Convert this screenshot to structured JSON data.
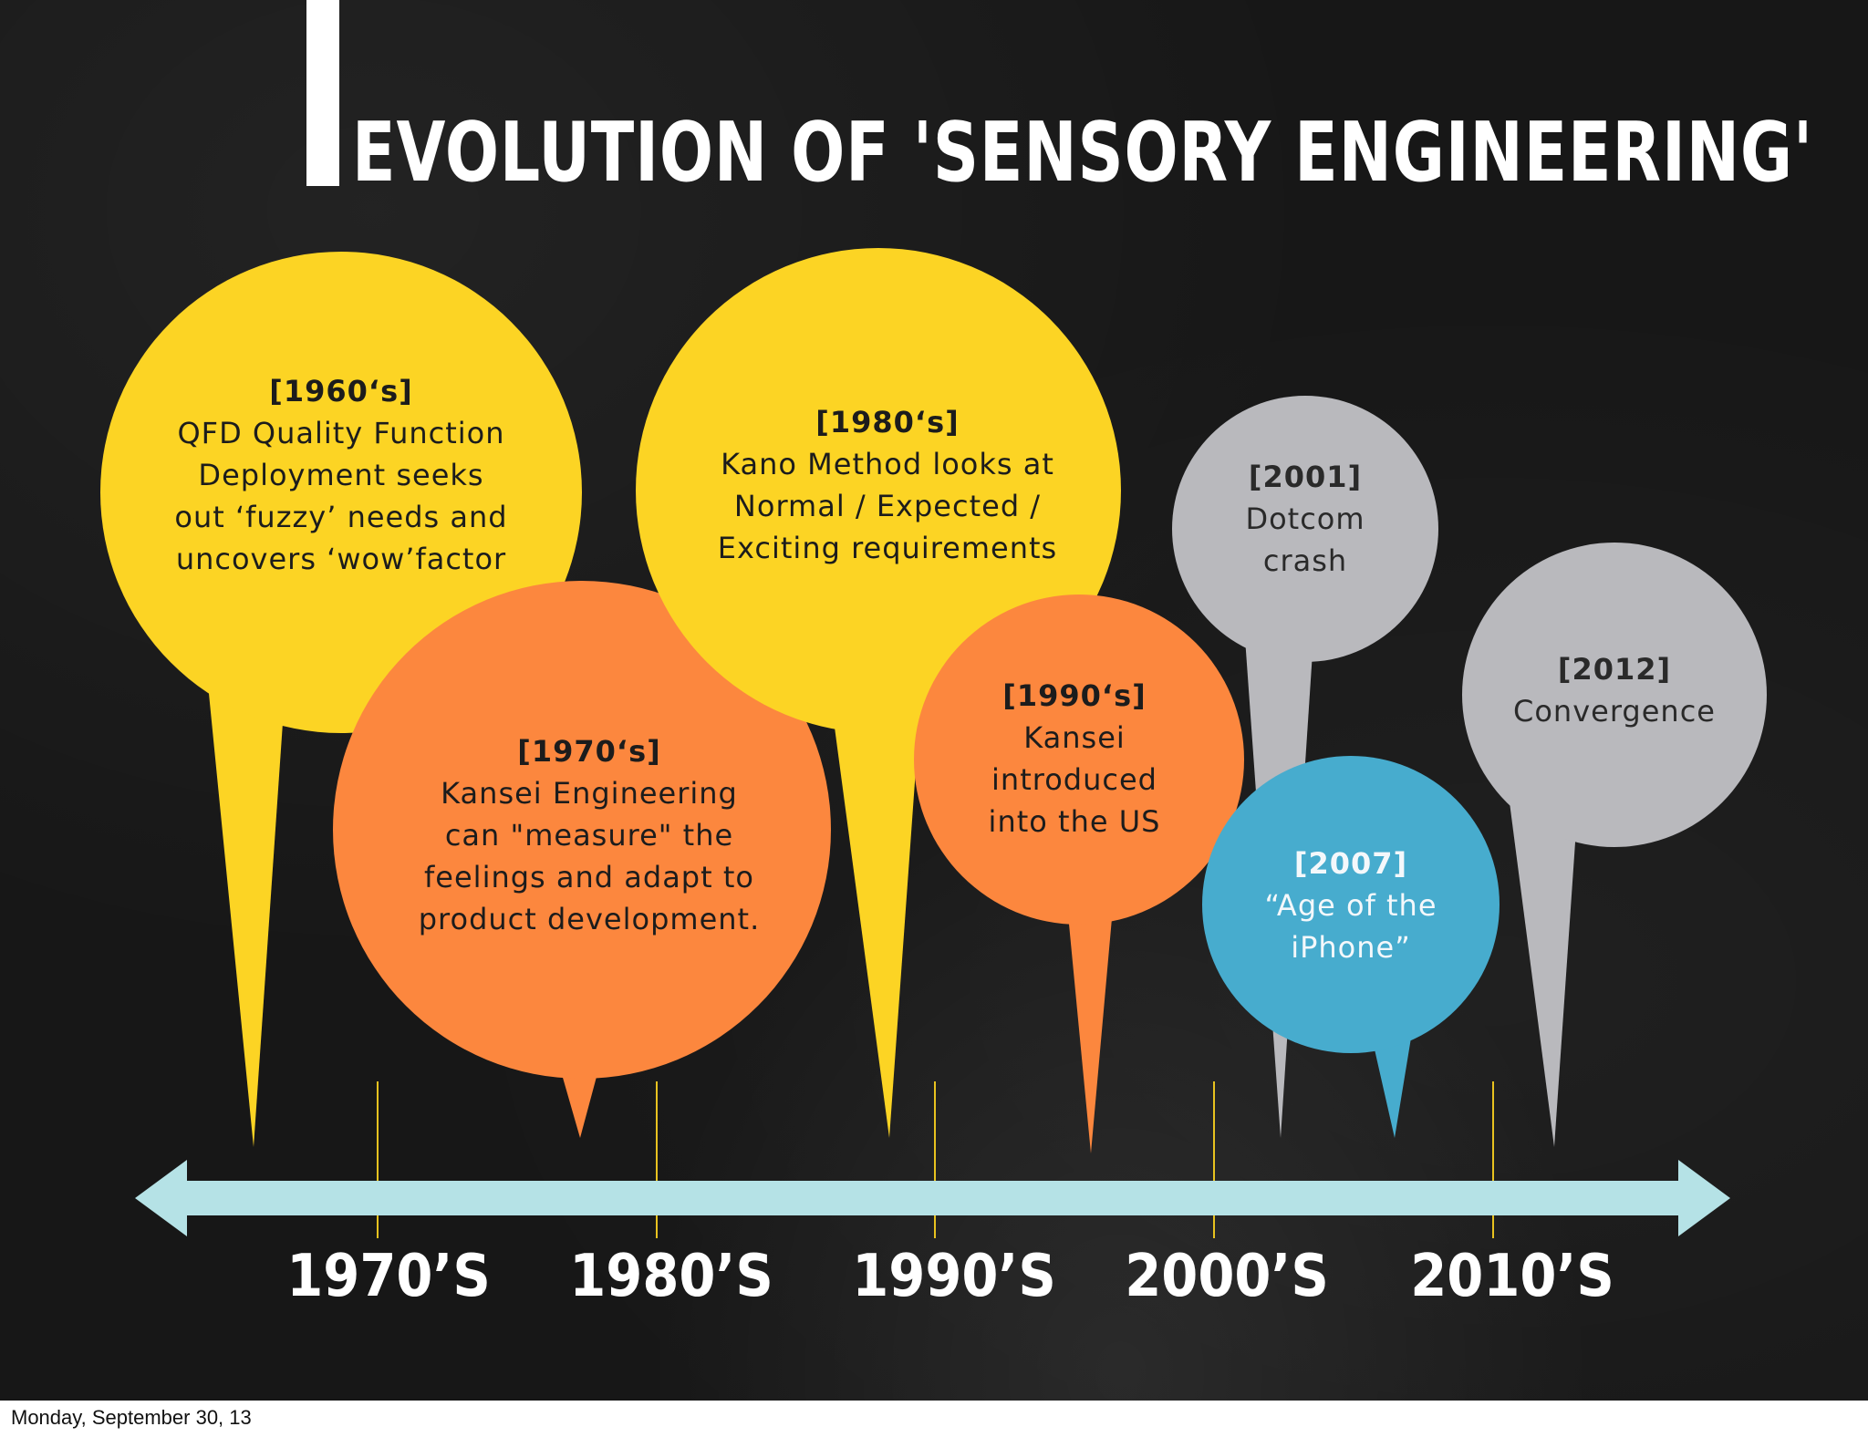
{
  "title": "EVOLUTION OF 'SENSORY ENGINEERING'",
  "colors": {
    "yellow": "#fcd424",
    "orange": "#fc873e",
    "grey": "#b9b9bd",
    "blue": "#47acce",
    "timeline": "#b5e2e6",
    "tick": "#e8c21f"
  },
  "events": [
    {
      "year": "[1960‘s]",
      "lines": [
        "QFD Quality Function",
        "Deployment seeks",
        "out ‘fuzzy’ needs and",
        "uncovers ‘wow’factor"
      ]
    },
    {
      "year": "[1970‘s]",
      "lines": [
        "Kansei Engineering",
        "can \"measure\" the",
        "feelings and adapt to",
        "product development."
      ]
    },
    {
      "year": "[1980‘s]",
      "lines": [
        "Kano Method looks at",
        "Normal / Expected /",
        "Exciting requirements"
      ]
    },
    {
      "year": "[1990‘s]",
      "lines": [
        "Kansei",
        "introduced",
        "into the US"
      ]
    },
    {
      "year": "[2001]",
      "lines": [
        "Dotcom",
        "crash"
      ]
    },
    {
      "year": "[2007]",
      "lines": [
        "“Age of the",
        "iPhone”"
      ]
    },
    {
      "year": "[2012]",
      "lines": [
        "Convergence"
      ]
    }
  ],
  "axis": {
    "labels": [
      "1970’S",
      "1980’S",
      "1990’S",
      "2000’S",
      "2010’S"
    ]
  },
  "footer": "Monday, September 30, 13"
}
